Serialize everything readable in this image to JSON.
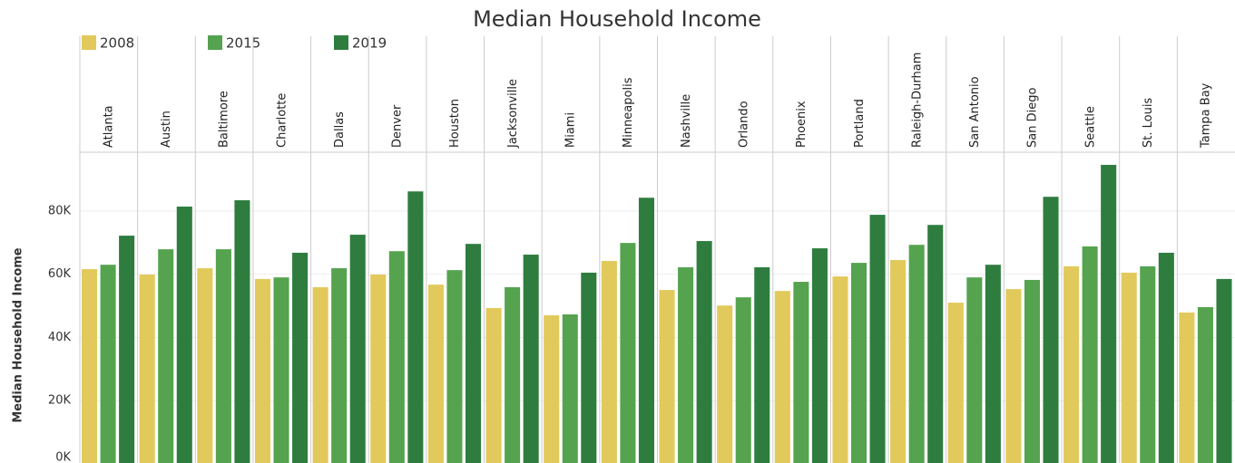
{
  "chart_data": {
    "type": "bar",
    "title": "Median Household Income",
    "y_label": "Median Household Income",
    "categories": [
      "Atlanta",
      "Austin",
      "Baltimore",
      "Charlotte",
      "Dallas",
      "Denver",
      "Houston",
      "Jacksonville",
      "Miami",
      "Minneapolis",
      "Nashville",
      "Orlando",
      "Phoenix",
      "Portland",
      "Raleigh-Durham",
      "San Antonio",
      "San Diego",
      "Seattle",
      "St. Louis",
      "Tampa Bay"
    ],
    "series": [
      {
        "name": "2008",
        "color": "#e2c95b",
        "values": [
          61600,
          59900,
          61900,
          58500,
          55900,
          59900,
          56700,
          49300,
          47000,
          64200,
          55000,
          50100,
          54700,
          59300,
          64500,
          51000,
          55300,
          62500,
          60500,
          47900
        ]
      },
      {
        "name": "2015",
        "color": "#55a34f",
        "values": [
          63000,
          67900,
          67900,
          59000,
          61900,
          67300,
          61300,
          55900,
          47300,
          69900,
          62200,
          52700,
          57600,
          63600,
          69300,
          59000,
          58200,
          68800,
          62500,
          49600
        ]
      },
      {
        "name": "2019",
        "color": "#2e7d3e",
        "values": [
          72200,
          81400,
          83400,
          66800,
          72500,
          86200,
          69600,
          66200,
          60500,
          84200,
          70500,
          62200,
          68200,
          78800,
          75600,
          63000,
          84500,
          94600,
          66800,
          58500
        ]
      }
    ],
    "ylim": [
      0,
      98600
    ],
    "yticks": [
      {
        "value": 0,
        "label": "0K"
      },
      {
        "value": 20000,
        "label": "20K"
      },
      {
        "value": 40000,
        "label": "40K"
      },
      {
        "value": 60000,
        "label": "60K"
      },
      {
        "value": 80000,
        "label": "80K"
      }
    ],
    "grid": true
  }
}
